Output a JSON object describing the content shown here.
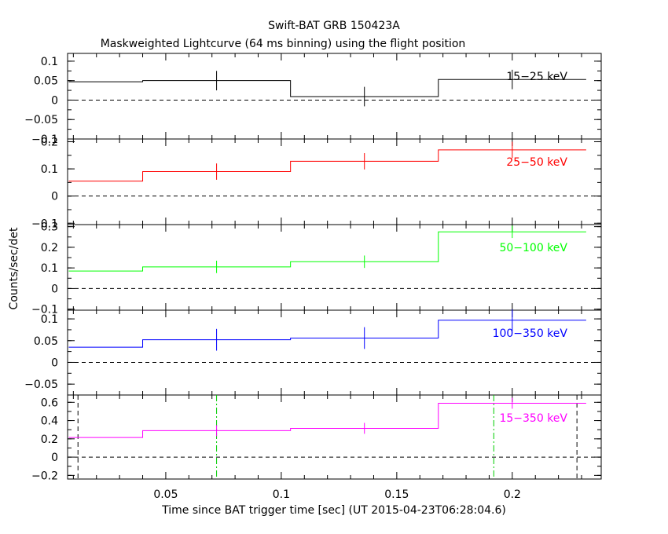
{
  "chart_data": {
    "type": "line",
    "title": "Swift-BAT GRB 150423A",
    "subtitle": "Maskweighted Lightcurve (64 ms binning) using the flight position",
    "xlabel": "Time since BAT trigger time [sec] (UT 2015-04-23T06:28:04.6)",
    "ylabel": "Counts/sec/det",
    "xlim": [
      0.0075,
      0.2385
    ],
    "x_ticks": [
      0.05,
      0.1,
      0.15,
      0.2
    ],
    "x_tick_labels": [
      "0.05",
      "0.1",
      "0.15",
      "0.2"
    ],
    "bin_edges": [
      0.008,
      0.04,
      0.104,
      0.168,
      0.232
    ],
    "bin_centers": [
      0.024,
      0.072,
      0.136,
      0.2
    ],
    "grid": false,
    "legend_placement": "top-right",
    "panels": [
      {
        "name": "15-25 keV",
        "label": "15−25 keV",
        "color": "#000000",
        "ylim": [
          -0.1,
          0.12
        ],
        "y_ticks": [
          -0.1,
          -0.05,
          0,
          0.05,
          0.1
        ],
        "y_tick_labels": [
          "−0.1",
          "−0.05",
          "0",
          "0.05",
          "0.1"
        ],
        "values": [
          0.047,
          0.05,
          0.009,
          0.053
        ],
        "errors": [
          null,
          0.025,
          0.025,
          0.025
        ]
      },
      {
        "name": "25-50 keV",
        "label": "25−50 keV",
        "color": "#ff0000",
        "ylim": [
          -0.105,
          0.21
        ],
        "y_ticks": [
          -0.1,
          0,
          0.1,
          0.2
        ],
        "y_tick_labels": [
          "−0.1",
          "0",
          "0.1",
          "0.2"
        ],
        "values": [
          0.055,
          0.09,
          0.128,
          0.17
        ],
        "errors": [
          null,
          0.03,
          0.03,
          0.03
        ]
      },
      {
        "name": "50-100 keV",
        "label": "50−100 keV",
        "color": "#00ff00",
        "ylim": [
          -0.105,
          0.31
        ],
        "y_ticks": [
          -0.1,
          0,
          0.1,
          0.2,
          0.3
        ],
        "y_tick_labels": [
          "−0.1",
          "0",
          "0.1",
          "0.2",
          "0.3"
        ],
        "values": [
          0.085,
          0.105,
          0.13,
          0.275
        ],
        "errors": [
          null,
          0.03,
          0.03,
          0.03
        ]
      },
      {
        "name": "100-350 keV",
        "label": "100−350 keV",
        "color": "#0000ff",
        "ylim": [
          -0.075,
          0.12
        ],
        "y_ticks": [
          -0.05,
          0,
          0.05,
          0.1
        ],
        "y_tick_labels": [
          "−0.05",
          "0",
          "0.05",
          "0.1"
        ],
        "values": [
          0.035,
          0.052,
          0.056,
          0.097
        ],
        "errors": [
          null,
          0.025,
          0.025,
          0.025
        ]
      },
      {
        "name": "15-350 keV",
        "label": "15−350 keV",
        "color": "#ff00ff",
        "ylim": [
          -0.24,
          0.68
        ],
        "y_ticks": [
          -0.2,
          0,
          0.2,
          0.4,
          0.6
        ],
        "y_tick_labels": [
          "−0.2",
          "0",
          "0.2",
          "0.4",
          "0.6"
        ],
        "values": [
          0.215,
          0.29,
          0.315,
          0.59
        ],
        "errors": [
          null,
          0.06,
          0.06,
          0.06
        ],
        "vlines_black_dashed": [
          0.012,
          0.228
        ],
        "vlines_green_dashdot": [
          0.072,
          0.192
        ]
      }
    ]
  }
}
